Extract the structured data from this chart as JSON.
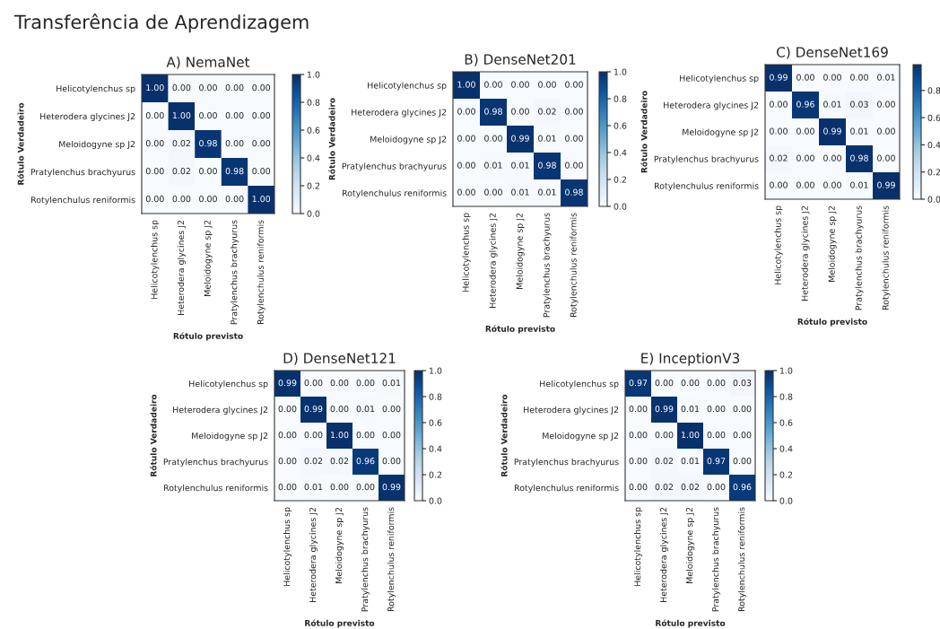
{
  "chart_data": [
    {
      "type": "heatmap",
      "title": "A) NemaNet",
      "annotations": [
        "Transferência de Aprendizagem"
      ],
      "xlabel": "Rótulo previsto",
      "ylabel": "Rótulo Verdadeiro",
      "categories": [
        "Helicotylenchus sp",
        "Heterodera glycines J2",
        "Meloidogyne sp J2",
        "Pratylenchus brachyurus",
        "Rotylenchulus reniformis"
      ],
      "y_categories": [
        "Helicotylenchus sp",
        "Heterodera glycines J2",
        "Meloidogyne sp J2",
        "Pratylenchus brachyurus",
        "Rotylenchulus reniformis"
      ],
      "cells": [
        [
          1.0,
          0.0,
          0.0,
          0.0,
          0.0
        ],
        [
          0.0,
          1.0,
          0.0,
          0.0,
          0.0
        ],
        [
          0.0,
          0.02,
          0.98,
          0.0,
          0.0
        ],
        [
          0.0,
          0.02,
          0.0,
          0.98,
          0.0
        ],
        [
          0.0,
          0.0,
          0.0,
          0.0,
          1.0
        ]
      ],
      "cell_labels": [
        [
          "1.00",
          "0.00",
          "0.00",
          "0.00",
          "0.00"
        ],
        [
          "0.00",
          "1.00",
          "0.00",
          "0.00",
          "0.00"
        ],
        [
          "0.00",
          "0.02",
          "0.98",
          "0.00",
          "0.00"
        ],
        [
          "0.00",
          "0.02",
          "0.00",
          "0.98",
          "0.00"
        ],
        [
          "0.00",
          "0.00",
          "0.00",
          "0.00",
          "1.00"
        ]
      ],
      "clim": [
        0,
        1.0
      ],
      "cticks": [
        {
          "value": 0,
          "label": "0.0"
        },
        {
          "value": 0.2,
          "label": "0.2"
        },
        {
          "value": 0.4,
          "label": "0.4"
        },
        {
          "value": 0.6,
          "label": "0.6"
        },
        {
          "value": 0.8,
          "label": "0.8"
        },
        {
          "value": 1.0,
          "label": "1.0"
        }
      ]
    },
    {
      "type": "heatmap",
      "title": "B) DenseNet201",
      "xlabel": "Rótulo previsto",
      "ylabel": "Rótulo Verdadeiro",
      "categories": [
        "Helicotylenchus sp",
        "Heterodera glycines J2",
        "Meloidogyne sp J2",
        "Pratylenchus brachyurus",
        "Rotylenchulus reniformis"
      ],
      "y_categories": [
        "Helicotylenchus sp",
        "Heterodera glycines J2",
        "Meloidogyne sp J2",
        "Pratylenchus brachyurus",
        "Rotylenchulus reniformis"
      ],
      "cells": [
        [
          1.0,
          0.0,
          0.0,
          0.0,
          0.0
        ],
        [
          0.0,
          0.98,
          0.0,
          0.02,
          0.0
        ],
        [
          0.0,
          0.0,
          0.99,
          0.01,
          0.0
        ],
        [
          0.0,
          0.01,
          0.01,
          0.98,
          0.0
        ],
        [
          0.0,
          0.0,
          0.01,
          0.01,
          0.98
        ]
      ],
      "cell_labels": [
        [
          "1.00",
          "0.00",
          "0.00",
          "0.00",
          "0.00"
        ],
        [
          "0.00",
          "0.98",
          "0.00",
          "0.02",
          "0.00"
        ],
        [
          "0.00",
          "0.00",
          "0.99",
          "0.01",
          "0.00"
        ],
        [
          "0.00",
          "0.01",
          "0.01",
          "0.98",
          "0.00"
        ],
        [
          "0.00",
          "0.00",
          "0.01",
          "0.01",
          "0.98"
        ]
      ],
      "clim": [
        0,
        1.0
      ],
      "cticks": [
        {
          "value": 0,
          "label": "0.0"
        },
        {
          "value": 0.2,
          "label": "0.2"
        },
        {
          "value": 0.4,
          "label": "0.4"
        },
        {
          "value": 0.6,
          "label": "0.6"
        },
        {
          "value": 0.8,
          "label": "0.8"
        },
        {
          "value": 1.0,
          "label": "1.0"
        }
      ]
    },
    {
      "type": "heatmap",
      "title": "C) DenseNet169",
      "xlabel": "Rótulo previsto",
      "ylabel": "Rótulo Verdadeiro",
      "categories": [
        "Helicotylenchus sp",
        "Heterodera glycines J2",
        "Meloidogyne sp J2",
        "Pratylenchus brachyurus",
        "Rotylenchulus reniformis"
      ],
      "y_categories": [
        "Helicotylenchus sp",
        "Heterodera glycines J2",
        "Meloidogyne sp J2",
        "Pratylenchus brachyurus",
        "Rotylenchulus reniformis"
      ],
      "cells": [
        [
          0.99,
          0.0,
          0.0,
          0.0,
          0.01
        ],
        [
          0.0,
          0.96,
          0.01,
          0.03,
          0.0
        ],
        [
          0.0,
          0.0,
          0.99,
          0.01,
          0.0
        ],
        [
          0.02,
          0.0,
          0.0,
          0.98,
          0.0
        ],
        [
          0.0,
          0.0,
          0.0,
          0.01,
          0.99
        ]
      ],
      "cell_labels": [
        [
          "0.99",
          "0.00",
          "0.00",
          "0.00",
          "0.01"
        ],
        [
          "0.00",
          "0.96",
          "0.01",
          "0.03",
          "0.00"
        ],
        [
          "0.00",
          "0.00",
          "0.99",
          "0.01",
          "0.00"
        ],
        [
          "0.02",
          "0.00",
          "0.00",
          "0.98",
          "0.00"
        ],
        [
          "0.00",
          "0.00",
          "0.00",
          "0.01",
          "0.99"
        ]
      ],
      "clim": [
        0,
        0.99
      ],
      "cticks": [
        {
          "value": 0,
          "label": "0.0"
        },
        {
          "value": 0.2,
          "label": "0.2"
        },
        {
          "value": 0.4,
          "label": "0.4"
        },
        {
          "value": 0.6,
          "label": "0.6"
        },
        {
          "value": 0.8,
          "label": "0.8"
        }
      ]
    },
    {
      "type": "heatmap",
      "title": "D) DenseNet121",
      "xlabel": "Rótulo previsto",
      "ylabel": "Rótulo Verdadeiro",
      "categories": [
        "Helicotylenchus sp",
        "Heterodera glycines J2",
        "Meloidogyne sp J2",
        "Pratylenchus brachyurus",
        "Rotylenchulus reniformis"
      ],
      "y_categories": [
        "Helicotylenchus sp",
        "Heterodera glycines J2",
        "Meloidogyne sp J2",
        "Pratylenchus brachyurus",
        "Rotylenchulus reniformis"
      ],
      "cells": [
        [
          0.99,
          0.0,
          0.0,
          0.0,
          0.01
        ],
        [
          0.0,
          0.99,
          0.0,
          0.01,
          0.0
        ],
        [
          0.0,
          0.0,
          1.0,
          0.0,
          0.0
        ],
        [
          0.0,
          0.02,
          0.02,
          0.96,
          0.0
        ],
        [
          0.0,
          0.01,
          0.0,
          0.0,
          0.99
        ]
      ],
      "cell_labels": [
        [
          "0.99",
          "0.00",
          "0.00",
          "0.00",
          "0.01"
        ],
        [
          "0.00",
          "0.99",
          "0.00",
          "0.01",
          "0.00"
        ],
        [
          "0.00",
          "0.00",
          "1.00",
          "0.00",
          "0.00"
        ],
        [
          "0.00",
          "0.02",
          "0.02",
          "0.96",
          "0.00"
        ],
        [
          "0.00",
          "0.01",
          "0.00",
          "0.00",
          "0.99"
        ]
      ],
      "clim": [
        0,
        1.0
      ],
      "cticks": [
        {
          "value": 0,
          "label": "0.0"
        },
        {
          "value": 0.2,
          "label": "0.2"
        },
        {
          "value": 0.4,
          "label": "0.4"
        },
        {
          "value": 0.6,
          "label": "0.6"
        },
        {
          "value": 0.8,
          "label": "0.8"
        },
        {
          "value": 1.0,
          "label": "1.0"
        }
      ]
    },
    {
      "type": "heatmap",
      "title": "E) InceptionV3",
      "xlabel": "Rótulo previsto",
      "ylabel": "Rótulo Verdadeiro",
      "categories": [
        "Helicotylenchus sp",
        "Heterodera glycines J2",
        "Meloidogyne sp J2",
        "Pratylenchus brachyurus",
        "Rotylenchulus reniformis"
      ],
      "y_categories": [
        "Helicotylenchus sp",
        "Heterodera glycines J2",
        "Meloidogyne sp J2",
        "Pratylenchus brachyurus",
        "Rotylenchulus reniformis"
      ],
      "cells": [
        [
          0.97,
          0.0,
          0.0,
          0.0,
          0.03
        ],
        [
          0.0,
          0.99,
          0.01,
          0.0,
          0.0
        ],
        [
          0.0,
          0.0,
          1.0,
          0.0,
          0.0
        ],
        [
          0.0,
          0.02,
          0.01,
          0.97,
          0.0
        ],
        [
          0.0,
          0.02,
          0.02,
          0.0,
          0.96
        ]
      ],
      "cell_labels": [
        [
          "0.97",
          "0.00",
          "0.00",
          "0.00",
          "0.03"
        ],
        [
          "0.00",
          "0.99",
          "0.01",
          "0.00",
          "0.00"
        ],
        [
          "0.00",
          "0.00",
          "1.00",
          "0.00",
          "0.00"
        ],
        [
          "0.00",
          "0.02",
          "0.01",
          "0.97",
          "0.00"
        ],
        [
          "0.00",
          "0.02",
          "0.02",
          "0.00",
          "0.96"
        ]
      ],
      "clim": [
        0,
        1.0
      ],
      "cticks": [
        {
          "value": 0,
          "label": "0.0"
        },
        {
          "value": 0.2,
          "label": "0.2"
        },
        {
          "value": 0.4,
          "label": "0.4"
        },
        {
          "value": 0.6,
          "label": "0.6"
        },
        {
          "value": 0.8,
          "label": "0.8"
        },
        {
          "value": 1.0,
          "label": "1.0"
        }
      ]
    }
  ]
}
